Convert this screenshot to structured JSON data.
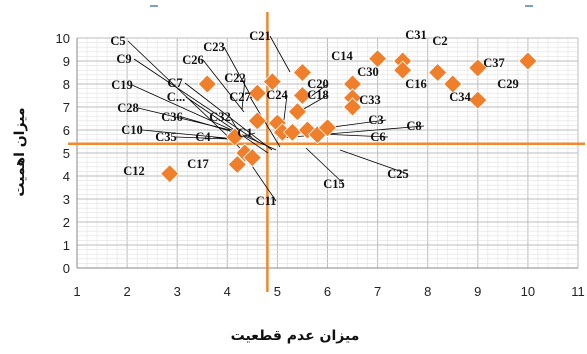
{
  "chart_data": {
    "type": "scatter",
    "title": "",
    "xlabel": "میزان عدم قطعیت",
    "ylabel": "میزان اهمیت",
    "xlim": [
      1,
      11
    ],
    "ylim": [
      0,
      10
    ],
    "x_ticks": [
      "1",
      "2",
      "3",
      "4",
      "5",
      "6",
      "7",
      "8",
      "9",
      "10",
      "11"
    ],
    "y_ticks": [
      "0",
      "1",
      "2",
      "3",
      "4",
      "5",
      "6",
      "7",
      "8",
      "9",
      "10"
    ],
    "grid": true,
    "reference_lines": {
      "x": 4.8,
      "y": 5.4
    },
    "marker_color": "#f07f2c",
    "line_color": "#f0892f",
    "leader_color": "#000000",
    "points": [
      {
        "x": 2.85,
        "y": 4.1
      },
      {
        "x": 3.6,
        "y": 8.0
      },
      {
        "x": 4.15,
        "y": 5.7
      },
      {
        "x": 4.2,
        "y": 4.5
      },
      {
        "x": 4.35,
        "y": 5.0
      },
      {
        "x": 4.5,
        "y": 4.8
      },
      {
        "x": 4.6,
        "y": 6.4
      },
      {
        "x": 4.6,
        "y": 7.6
      },
      {
        "x": 4.9,
        "y": 8.1
      },
      {
        "x": 5.0,
        "y": 6.3
      },
      {
        "x": 5.1,
        "y": 5.9
      },
      {
        "x": 5.3,
        "y": 5.9
      },
      {
        "x": 5.4,
        "y": 6.8
      },
      {
        "x": 5.5,
        "y": 8.5
      },
      {
        "x": 5.5,
        "y": 7.5
      },
      {
        "x": 5.6,
        "y": 6.0
      },
      {
        "x": 5.8,
        "y": 5.8
      },
      {
        "x": 6.0,
        "y": 6.1
      },
      {
        "x": 6.5,
        "y": 8.0
      },
      {
        "x": 6.5,
        "y": 7.4
      },
      {
        "x": 6.5,
        "y": 7.0
      },
      {
        "x": 7.0,
        "y": 9.1
      },
      {
        "x": 7.5,
        "y": 9.0
      },
      {
        "x": 7.5,
        "y": 8.6
      },
      {
        "x": 8.2,
        "y": 8.5
      },
      {
        "x": 8.5,
        "y": 8.0
      },
      {
        "x": 9.0,
        "y": 8.7
      },
      {
        "x": 9.0,
        "y": 7.3
      },
      {
        "x": 10.0,
        "y": 9.0
      }
    ],
    "labels": [
      {
        "text": "C5"
      },
      {
        "text": "C9"
      },
      {
        "text": "C7"
      },
      {
        "text": "C..."
      },
      {
        "text": "C19"
      },
      {
        "text": "C28"
      },
      {
        "text": "C36"
      },
      {
        "text": "C32"
      },
      {
        "text": "C10"
      },
      {
        "text": "C35"
      },
      {
        "text": "C4"
      },
      {
        "text": "C1"
      },
      {
        "text": "C12"
      },
      {
        "text": "C17"
      },
      {
        "text": "C11"
      },
      {
        "text": "C26"
      },
      {
        "text": "C22"
      },
      {
        "text": "C27"
      },
      {
        "text": "C24"
      },
      {
        "text": "C23"
      },
      {
        "text": "C21"
      },
      {
        "text": "C20"
      },
      {
        "text": "C18"
      },
      {
        "text": "C14"
      },
      {
        "text": "C30"
      },
      {
        "text": "C33"
      },
      {
        "text": "C3"
      },
      {
        "text": "C8"
      },
      {
        "text": "C6"
      },
      {
        "text": "C15"
      },
      {
        "text": "C25"
      },
      {
        "text": "C31"
      },
      {
        "text": "C2"
      },
      {
        "text": "C16"
      },
      {
        "text": "C34"
      },
      {
        "text": "C37"
      },
      {
        "text": "C29"
      }
    ]
  }
}
